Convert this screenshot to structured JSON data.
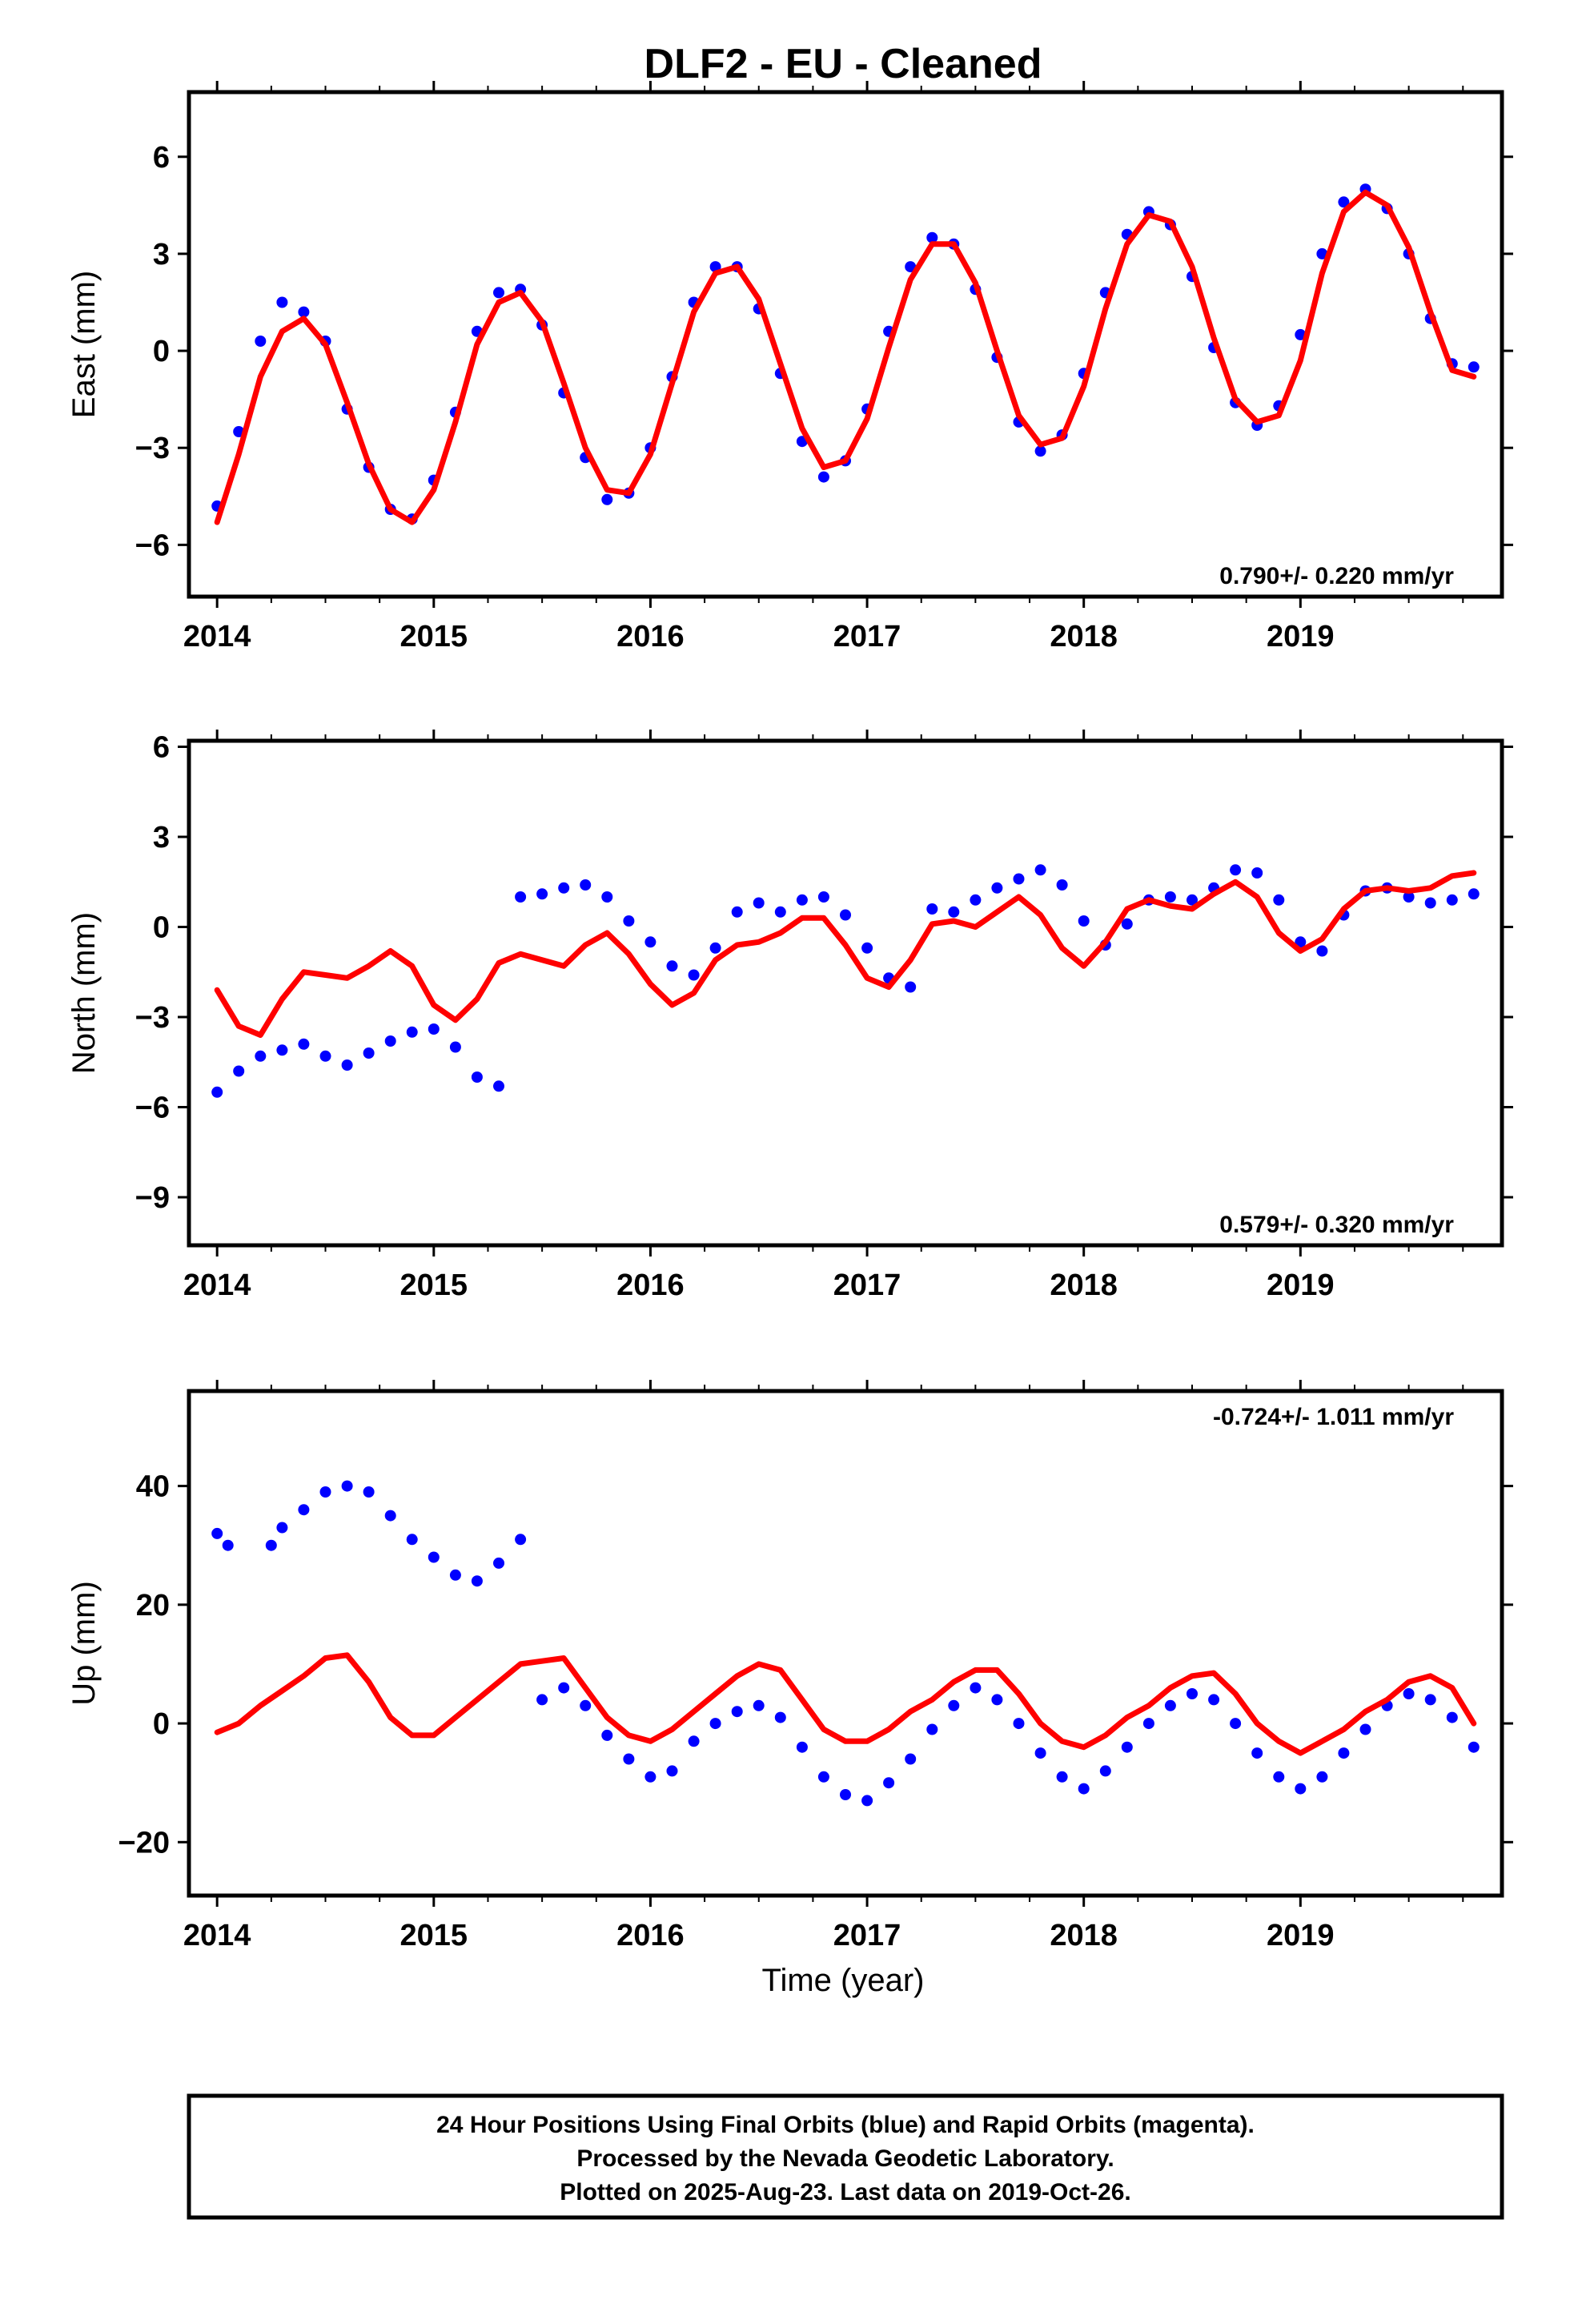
{
  "title": "DLF2  - EU - Cleaned",
  "xlabel": "Time (year)",
  "footer": {
    "line1": "24 Hour Positions Using Final Orbits (blue) and Rapid Orbits (magenta).",
    "line2": "Processed by the Nevada Geodetic Laboratory.",
    "line3": "Plotted on 2025-Aug-23. Last data on 2019-Oct-26."
  },
  "colors": {
    "points": "#0000ff",
    "model": "#ff0000",
    "frame": "#000000"
  },
  "chart_data": [
    {
      "type": "scatter",
      "panel": "east",
      "ylabel": "East (mm)",
      "rate": "0.790+/- 0.220 mm/yr",
      "rate_position": "bottom-right",
      "xlim": [
        2013.87,
        2019.93
      ],
      "ylim": [
        -7.6,
        8.0
      ],
      "xticks": [
        2014,
        2015,
        2016,
        2017,
        2018,
        2019
      ],
      "yticks": [
        -6,
        -3,
        0,
        3,
        6
      ],
      "ytick_labels": [
        "−6",
        "−3",
        "0",
        "3",
        "6"
      ],
      "grid": false,
      "series": [
        {
          "kind": "points",
          "x": [
            2014.0,
            2014.1,
            2014.2,
            2014.3,
            2014.4,
            2014.5,
            2014.6,
            2014.7,
            2014.8,
            2014.9,
            2015.0,
            2015.1,
            2015.2,
            2015.3,
            2015.4,
            2015.5,
            2015.6,
            2015.7,
            2015.8,
            2015.9,
            2016.0,
            2016.1,
            2016.2,
            2016.3,
            2016.4,
            2016.5,
            2016.6,
            2016.7,
            2016.8,
            2016.9,
            2017.0,
            2017.1,
            2017.2,
            2017.3,
            2017.4,
            2017.5,
            2017.6,
            2017.7,
            2017.8,
            2017.9,
            2018.0,
            2018.1,
            2018.2,
            2018.3,
            2018.4,
            2018.5,
            2018.6,
            2018.7,
            2018.8,
            2018.9,
            2019.0,
            2019.1,
            2019.2,
            2019.3,
            2019.4,
            2019.5,
            2019.6,
            2019.7,
            2019.8
          ],
          "y": [
            -4.8,
            -2.5,
            0.3,
            1.5,
            1.2,
            0.3,
            -1.8,
            -3.6,
            -4.9,
            -5.2,
            -4.0,
            -1.9,
            0.6,
            1.8,
            1.9,
            0.8,
            -1.3,
            -3.3,
            -4.6,
            -4.4,
            -3.0,
            -0.8,
            1.5,
            2.6,
            2.6,
            1.3,
            -0.7,
            -2.8,
            -3.9,
            -3.4,
            -1.8,
            0.6,
            2.6,
            3.5,
            3.3,
            1.9,
            -0.2,
            -2.2,
            -3.1,
            -2.6,
            -0.7,
            1.8,
            3.6,
            4.3,
            3.9,
            2.3,
            0.1,
            -1.6,
            -2.3,
            -1.7,
            0.5,
            3.0,
            4.6,
            5.0,
            4.4,
            3.0,
            1.0,
            -0.4,
            -0.5
          ]
        },
        {
          "kind": "line",
          "x": [
            2014.0,
            2014.1,
            2014.2,
            2014.3,
            2014.4,
            2014.5,
            2014.6,
            2014.7,
            2014.8,
            2014.9,
            2015.0,
            2015.1,
            2015.2,
            2015.3,
            2015.4,
            2015.5,
            2015.6,
            2015.7,
            2015.8,
            2015.9,
            2016.0,
            2016.1,
            2016.2,
            2016.3,
            2016.4,
            2016.5,
            2016.6,
            2016.7,
            2016.8,
            2016.9,
            2017.0,
            2017.1,
            2017.2,
            2017.3,
            2017.4,
            2017.5,
            2017.6,
            2017.7,
            2017.8,
            2017.9,
            2018.0,
            2018.1,
            2018.2,
            2018.3,
            2018.4,
            2018.5,
            2018.6,
            2018.7,
            2018.8,
            2018.9,
            2019.0,
            2019.1,
            2019.2,
            2019.3,
            2019.4,
            2019.5,
            2019.6,
            2019.7,
            2019.8
          ],
          "y": [
            -5.3,
            -3.2,
            -0.8,
            0.6,
            1.0,
            0.2,
            -1.6,
            -3.5,
            -4.9,
            -5.3,
            -4.3,
            -2.2,
            0.2,
            1.5,
            1.8,
            0.9,
            -1.0,
            -3.0,
            -4.3,
            -4.4,
            -3.2,
            -1.0,
            1.2,
            2.4,
            2.6,
            1.6,
            -0.4,
            -2.4,
            -3.6,
            -3.4,
            -2.1,
            0.1,
            2.2,
            3.3,
            3.3,
            2.1,
            0.0,
            -2.0,
            -2.9,
            -2.7,
            -1.1,
            1.3,
            3.3,
            4.2,
            4.0,
            2.6,
            0.4,
            -1.5,
            -2.2,
            -2.0,
            -0.3,
            2.4,
            4.3,
            4.9,
            4.5,
            3.2,
            1.2,
            -0.6,
            -0.8
          ]
        }
      ]
    },
    {
      "type": "scatter",
      "panel": "north",
      "ylabel": "North (mm)",
      "rate": "0.579+/- 0.320 mm/yr",
      "rate_position": "bottom-right",
      "xlim": [
        2013.87,
        2019.93
      ],
      "ylim": [
        -10.6,
        6.2
      ],
      "xticks": [
        2014,
        2015,
        2016,
        2017,
        2018,
        2019
      ],
      "yticks": [
        -9,
        -6,
        -3,
        0,
        3,
        6
      ],
      "ytick_labels": [
        "−9",
        "−6",
        "−3",
        "0",
        "3",
        "6"
      ],
      "grid": false,
      "series": [
        {
          "kind": "points",
          "x": [
            2014.0,
            2014.1,
            2014.2,
            2014.3,
            2014.4,
            2014.5,
            2014.6,
            2014.7,
            2014.8,
            2014.9,
            2015.0,
            2015.1,
            2015.2,
            2015.3,
            2015.4,
            2015.5,
            2015.6,
            2015.7,
            2015.8,
            2015.9,
            2016.0,
            2016.1,
            2016.2,
            2016.3,
            2016.4,
            2016.5,
            2016.6,
            2016.7,
            2016.8,
            2016.9,
            2017.0,
            2017.1,
            2017.2,
            2017.3,
            2017.4,
            2017.5,
            2017.6,
            2017.7,
            2017.8,
            2017.9,
            2018.0,
            2018.1,
            2018.2,
            2018.3,
            2018.4,
            2018.5,
            2018.6,
            2018.7,
            2018.8,
            2018.9,
            2019.0,
            2019.1,
            2019.2,
            2019.3,
            2019.4,
            2019.5,
            2019.6,
            2019.7,
            2019.8
          ],
          "y": [
            -5.5,
            -4.8,
            -4.3,
            -4.1,
            -3.9,
            -4.3,
            -4.6,
            -4.2,
            -3.8,
            -3.5,
            -3.4,
            -4.0,
            -5.0,
            -5.3,
            1.0,
            1.1,
            1.3,
            1.4,
            1.0,
            0.2,
            -0.5,
            -1.3,
            -1.6,
            -0.7,
            0.5,
            0.8,
            0.5,
            0.9,
            1.0,
            0.4,
            -0.7,
            -1.7,
            -2.0,
            0.6,
            0.5,
            0.9,
            1.3,
            1.6,
            1.9,
            1.4,
            0.2,
            -0.6,
            0.1,
            0.9,
            1.0,
            0.9,
            1.3,
            1.9,
            1.8,
            0.9,
            -0.5,
            -0.8,
            0.4,
            1.2,
            1.3,
            1.0,
            0.8,
            0.9,
            1.1
          ]
        },
        {
          "kind": "line",
          "x": [
            2014.0,
            2014.1,
            2014.2,
            2014.3,
            2014.4,
            2014.5,
            2014.6,
            2014.7,
            2014.8,
            2014.9,
            2015.0,
            2015.1,
            2015.2,
            2015.3,
            2015.4,
            2015.5,
            2015.6,
            2015.7,
            2015.8,
            2015.9,
            2016.0,
            2016.1,
            2016.2,
            2016.3,
            2016.4,
            2016.5,
            2016.6,
            2016.7,
            2016.8,
            2016.9,
            2017.0,
            2017.1,
            2017.2,
            2017.3,
            2017.4,
            2017.5,
            2017.6,
            2017.7,
            2017.8,
            2017.9,
            2018.0,
            2018.1,
            2018.2,
            2018.3,
            2018.4,
            2018.5,
            2018.6,
            2018.7,
            2018.8,
            2018.9,
            2019.0,
            2019.1,
            2019.2,
            2019.3,
            2019.4,
            2019.5,
            2019.6,
            2019.7,
            2019.8
          ],
          "y": [
            -2.1,
            -3.3,
            -3.6,
            -2.4,
            -1.5,
            -1.6,
            -1.7,
            -1.3,
            -0.8,
            -1.3,
            -2.6,
            -3.1,
            -2.4,
            -1.2,
            -0.9,
            -1.1,
            -1.3,
            -0.6,
            -0.2,
            -0.9,
            -1.9,
            -2.6,
            -2.2,
            -1.1,
            -0.6,
            -0.5,
            -0.2,
            0.3,
            0.3,
            -0.6,
            -1.7,
            -2.0,
            -1.1,
            0.1,
            0.2,
            0.0,
            0.5,
            1.0,
            0.4,
            -0.7,
            -1.3,
            -0.5,
            0.6,
            0.9,
            0.7,
            0.6,
            1.1,
            1.5,
            1.0,
            -0.2,
            -0.8,
            -0.4,
            0.6,
            1.2,
            1.3,
            1.2,
            1.3,
            1.7,
            1.8
          ]
        }
      ]
    },
    {
      "type": "scatter",
      "panel": "up",
      "ylabel": "Up (mm)",
      "rate": "-0.724+/- 1.011 mm/yr",
      "rate_position": "top-right",
      "xlim": [
        2013.87,
        2019.93
      ],
      "ylim": [
        -29,
        56
      ],
      "xticks": [
        2014,
        2015,
        2016,
        2017,
        2018,
        2019
      ],
      "yticks": [
        -20,
        0,
        20,
        40
      ],
      "ytick_labels": [
        "−20",
        "0",
        "20",
        "40"
      ],
      "grid": false,
      "series": [
        {
          "kind": "points",
          "x": [
            2014.0,
            2014.05,
            2014.25,
            2014.3,
            2014.4,
            2014.5,
            2014.6,
            2014.7,
            2014.8,
            2014.9,
            2015.0,
            2015.1,
            2015.2,
            2015.3,
            2015.4,
            2015.5,
            2015.6,
            2015.7,
            2015.8,
            2015.9,
            2016.0,
            2016.1,
            2016.2,
            2016.3,
            2016.4,
            2016.5,
            2016.6,
            2016.7,
            2016.8,
            2016.9,
            2017.0,
            2017.1,
            2017.2,
            2017.3,
            2017.4,
            2017.5,
            2017.6,
            2017.7,
            2017.8,
            2017.9,
            2018.0,
            2018.1,
            2018.2,
            2018.3,
            2018.4,
            2018.5,
            2018.6,
            2018.7,
            2018.8,
            2018.9,
            2019.0,
            2019.1,
            2019.2,
            2019.3,
            2019.4,
            2019.5,
            2019.6,
            2019.7,
            2019.8
          ],
          "y": [
            32,
            30,
            30,
            33,
            36,
            39,
            40,
            39,
            35,
            31,
            28,
            25,
            24,
            27,
            31,
            4,
            6,
            3,
            -2,
            -6,
            -9,
            -8,
            -3,
            0,
            2,
            3,
            1,
            -4,
            -9,
            -12,
            -13,
            -10,
            -6,
            -1,
            3,
            6,
            4,
            0,
            -5,
            -9,
            -11,
            -8,
            -4,
            0,
            3,
            5,
            4,
            0,
            -5,
            -9,
            -11,
            -9,
            -5,
            -1,
            3,
            5,
            4,
            1,
            -4
          ]
        },
        {
          "kind": "line",
          "x": [
            2014.0,
            2014.1,
            2014.2,
            2014.3,
            2014.4,
            2014.5,
            2014.6,
            2014.7,
            2014.8,
            2014.9,
            2015.0,
            2015.1,
            2015.2,
            2015.3,
            2015.4,
            2015.5,
            2015.6,
            2015.7,
            2015.8,
            2015.9,
            2016.0,
            2016.1,
            2016.2,
            2016.3,
            2016.4,
            2016.5,
            2016.6,
            2016.7,
            2016.8,
            2016.9,
            2017.0,
            2017.1,
            2017.2,
            2017.3,
            2017.4,
            2017.5,
            2017.6,
            2017.7,
            2017.8,
            2017.9,
            2018.0,
            2018.1,
            2018.2,
            2018.3,
            2018.4,
            2018.5,
            2018.6,
            2018.7,
            2018.8,
            2018.9,
            2019.0,
            2019.1,
            2019.2,
            2019.3,
            2019.4,
            2019.5,
            2019.6,
            2019.7,
            2019.8
          ],
          "y": [
            -1.5,
            0,
            3,
            5.5,
            8,
            11,
            11.5,
            7,
            1,
            -2,
            -2,
            1,
            4,
            7,
            10,
            10.5,
            11,
            6,
            1,
            -2,
            -3,
            -1,
            2,
            5,
            8,
            10,
            9,
            4,
            -1,
            -3,
            -3,
            -1,
            2,
            4,
            7,
            9,
            9,
            5,
            0,
            -3,
            -4,
            -2,
            1,
            3,
            6,
            8,
            8.5,
            5,
            0,
            -3,
            -5,
            -3,
            -1,
            2,
            4,
            7,
            8,
            6,
            0
          ]
        }
      ]
    }
  ]
}
